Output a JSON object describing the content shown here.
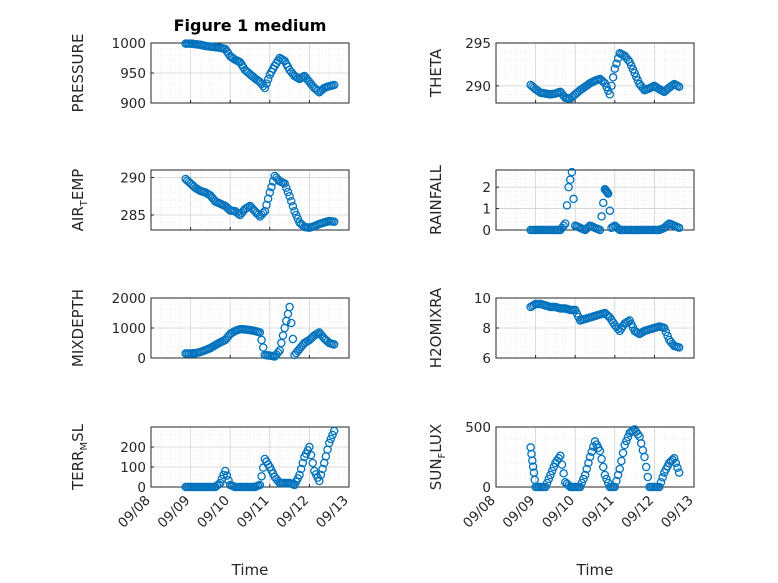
{
  "chart_data": [
    {
      "type": "scatter",
      "title": "Figure 1 medium",
      "ylabel": "PRESSURE",
      "ylabel_sub": "",
      "ylim": [
        900,
        1000
      ],
      "yticks": [
        900,
        950,
        1000
      ],
      "xticks_shown": false,
      "color": "#0072BD",
      "x": [
        "09/08 21:00",
        "09/09 00:00",
        "09/09 03:00",
        "09/09 06:00",
        "09/09 09:00",
        "09/09 12:00",
        "09/09 15:00",
        "09/09 18:00",
        "09/09 21:00",
        "09/10 00:00",
        "09/10 03:00",
        "09/10 06:00",
        "09/10 09:00",
        "09/10 12:00",
        "09/10 15:00",
        "09/10 18:00",
        "09/10 21:00",
        "09/11 00:00",
        "09/11 03:00",
        "09/11 06:00",
        "09/11 09:00",
        "09/11 12:00",
        "09/11 15:00",
        "09/11 18:00",
        "09/11 21:00",
        "09/12 00:00",
        "09/12 03:00",
        "09/12 06:00",
        "09/12 09:00",
        "09/12 12:00",
        "09/12 15:00"
      ],
      "y": [
        999,
        999,
        998,
        997,
        995,
        994,
        993,
        992,
        990,
        978,
        972,
        968,
        955,
        948,
        941,
        935,
        925,
        947,
        962,
        975,
        970,
        955,
        945,
        940,
        945,
        935,
        925,
        918,
        925,
        928,
        930
      ]
    },
    {
      "type": "scatter",
      "title": "",
      "ylabel": "THETA",
      "ylabel_sub": "",
      "ylim": [
        288,
        295
      ],
      "yticks": [
        290,
        295
      ],
      "xticks_shown": false,
      "color": "#0072BD",
      "x": [
        "09/08 21:00",
        "09/09 00:00",
        "09/09 03:00",
        "09/09 06:00",
        "09/09 09:00",
        "09/09 12:00",
        "09/09 15:00",
        "09/09 18:00",
        "09/09 21:00",
        "09/10 00:00",
        "09/10 03:00",
        "09/10 06:00",
        "09/10 09:00",
        "09/10 12:00",
        "09/10 15:00",
        "09/10 18:00",
        "09/10 21:00",
        "09/11 00:00",
        "09/11 03:00",
        "09/11 06:00",
        "09/11 09:00",
        "09/11 12:00",
        "09/11 15:00",
        "09/11 18:00",
        "09/11 21:00",
        "09/12 00:00",
        "09/12 03:00",
        "09/12 06:00",
        "09/12 09:00",
        "09/12 12:00",
        "09/12 15:00"
      ],
      "y": [
        290.1,
        289.6,
        289.2,
        289.1,
        289.0,
        289.1,
        289.3,
        288.6,
        288.5,
        289.0,
        289.5,
        289.9,
        290.3,
        290.6,
        290.8,
        290.3,
        289.0,
        292.0,
        293.8,
        293.5,
        292.8,
        291.5,
        290.2,
        289.5,
        289.7,
        290.0,
        289.6,
        289.3,
        289.8,
        290.2,
        289.9
      ]
    },
    {
      "type": "scatter",
      "title": "",
      "ylabel": "AIR",
      "ylabel_sub": "T",
      "ylabel_after": "EMP",
      "ylim": [
        283,
        291
      ],
      "yticks": [
        285,
        290
      ],
      "xticks_shown": false,
      "color": "#0072BD",
      "x": [
        "09/08 21:00",
        "09/09 00:00",
        "09/09 03:00",
        "09/09 06:00",
        "09/09 09:00",
        "09/09 12:00",
        "09/09 15:00",
        "09/09 18:00",
        "09/09 21:00",
        "09/10 00:00",
        "09/10 03:00",
        "09/10 06:00",
        "09/10 09:00",
        "09/10 12:00",
        "09/10 15:00",
        "09/10 18:00",
        "09/10 21:00",
        "09/11 00:00",
        "09/11 03:00",
        "09/11 06:00",
        "09/11 09:00",
        "09/11 12:00",
        "09/11 15:00",
        "09/11 18:00",
        "09/11 21:00",
        "09/12 00:00",
        "09/12 03:00",
        "09/12 06:00",
        "09/12 09:00",
        "09/12 12:00",
        "09/12 15:00"
      ],
      "y": [
        289.8,
        289.2,
        288.6,
        288.2,
        288.0,
        287.6,
        286.8,
        286.5,
        286.2,
        285.6,
        285.5,
        285.0,
        285.8,
        286.2,
        285.5,
        284.8,
        285.5,
        288.0,
        290.2,
        289.5,
        289.2,
        287.5,
        285.5,
        284.0,
        283.4,
        283.3,
        283.5,
        283.8,
        284.0,
        284.2,
        284.1
      ]
    },
    {
      "type": "scatter",
      "title": "",
      "ylabel": "RAINFALL",
      "ylabel_sub": "",
      "ylim": [
        0,
        2.8
      ],
      "yticks": [
        0,
        1,
        2
      ],
      "xticks_shown": false,
      "color": "#0072BD",
      "x": [
        "09/08 21:00",
        "09/09 00:00",
        "09/09 03:00",
        "09/09 06:00",
        "09/09 09:00",
        "09/09 12:00",
        "09/09 15:00",
        "09/09 18:00",
        "09/09 20:00",
        "09/09 22:00",
        "09/10 00:00",
        "09/10 03:00",
        "09/10 06:00",
        "09/10 09:00",
        "09/10 12:00",
        "09/10 15:00",
        "09/10 18:00",
        "09/10 19:00",
        "09/10 20:00",
        "09/10 22:00",
        "09/11 00:00",
        "09/11 03:00",
        "09/11 06:00",
        "09/11 09:00",
        "09/11 12:00",
        "09/11 15:00",
        "09/11 18:00",
        "09/11 21:00",
        "09/12 00:00",
        "09/12 03:00",
        "09/12 06:00",
        "09/12 09:00",
        "09/12 12:00",
        "09/12 15:00"
      ],
      "y": [
        0,
        0,
        0,
        0,
        0,
        0,
        0,
        0.3,
        2.0,
        2.7,
        0.2,
        0.1,
        0,
        0.2,
        0.1,
        0,
        1.9,
        1.8,
        1.7,
        0.1,
        0.2,
        0,
        0,
        0,
        0,
        0,
        0,
        0,
        0,
        0,
        0.1,
        0.3,
        0.2,
        0.1
      ]
    },
    {
      "type": "scatter",
      "title": "",
      "ylabel": "MIXDEPTH",
      "ylabel_sub": "",
      "ylim": [
        0,
        2000
      ],
      "yticks": [
        0,
        1000,
        2000
      ],
      "xticks_shown": false,
      "color": "#0072BD",
      "x": [
        "09/08 21:00",
        "09/09 00:00",
        "09/09 03:00",
        "09/09 06:00",
        "09/09 09:00",
        "09/09 12:00",
        "09/09 15:00",
        "09/09 18:00",
        "09/09 21:00",
        "09/10 00:00",
        "09/10 03:00",
        "09/10 06:00",
        "09/10 09:00",
        "09/10 12:00",
        "09/10 15:00",
        "09/10 18:00",
        "09/10 21:00",
        "09/11 00:00",
        "09/11 03:00",
        "09/11 06:00",
        "09/11 09:00",
        "09/11 12:00",
        "09/11 15:00",
        "09/11 18:00",
        "09/11 21:00",
        "09/12 00:00",
        "09/12 03:00",
        "09/12 06:00",
        "09/12 09:00",
        "09/12 12:00",
        "09/12 15:00"
      ],
      "y": [
        150,
        150,
        160,
        200,
        260,
        330,
        430,
        520,
        600,
        800,
        900,
        960,
        950,
        930,
        900,
        850,
        100,
        80,
        50,
        250,
        1000,
        1700,
        100,
        300,
        500,
        600,
        750,
        850,
        650,
        500,
        450
      ]
    },
    {
      "type": "scatter",
      "title": "",
      "ylabel": "H2OMIXRA",
      "ylabel_sub": "",
      "ylim": [
        6,
        10
      ],
      "yticks": [
        6,
        8,
        10
      ],
      "xticks_shown": false,
      "color": "#0072BD",
      "x": [
        "09/08 21:00",
        "09/09 00:00",
        "09/09 03:00",
        "09/09 06:00",
        "09/09 09:00",
        "09/09 12:00",
        "09/09 15:00",
        "09/09 18:00",
        "09/09 21:00",
        "09/10 00:00",
        "09/10 03:00",
        "09/10 06:00",
        "09/10 09:00",
        "09/10 12:00",
        "09/10 15:00",
        "09/10 18:00",
        "09/10 21:00",
        "09/11 00:00",
        "09/11 03:00",
        "09/11 06:00",
        "09/11 09:00",
        "09/11 12:00",
        "09/11 15:00",
        "09/11 18:00",
        "09/11 21:00",
        "09/12 00:00",
        "09/12 03:00",
        "09/12 06:00",
        "09/12 09:00",
        "09/12 12:00",
        "09/12 15:00"
      ],
      "y": [
        9.4,
        9.6,
        9.6,
        9.5,
        9.4,
        9.4,
        9.3,
        9.3,
        9.2,
        9.2,
        8.5,
        8.6,
        8.7,
        8.8,
        8.9,
        9.0,
        8.7,
        8.2,
        7.8,
        8.3,
        8.5,
        7.8,
        7.6,
        7.8,
        7.9,
        8.0,
        8.1,
        8.0,
        7.2,
        6.8,
        6.7
      ]
    },
    {
      "type": "scatter",
      "title": "",
      "ylabel": "TERR",
      "ylabel_sub": "M",
      "ylabel_after": "SL",
      "ylim": [
        0,
        300
      ],
      "yticks": [
        0,
        100,
        200
      ],
      "xticks_shown": true,
      "xlabel": "Time",
      "xticks": [
        "09/08",
        "09/09",
        "09/10",
        "09/11",
        "09/12",
        "09/13"
      ],
      "color": "#0072BD",
      "x": [
        "09/08 21:00",
        "09/09 00:00",
        "09/09 03:00",
        "09/09 06:00",
        "09/09 09:00",
        "09/09 12:00",
        "09/09 15:00",
        "09/09 18:00",
        "09/09 21:00",
        "09/10 00:00",
        "09/10 03:00",
        "09/10 06:00",
        "09/10 09:00",
        "09/10 12:00",
        "09/10 15:00",
        "09/10 18:00",
        "09/10 21:00",
        "09/11 00:00",
        "09/11 03:00",
        "09/11 06:00",
        "09/11 09:00",
        "09/11 12:00",
        "09/11 15:00",
        "09/11 18:00",
        "09/11 21:00",
        "09/12 00:00",
        "09/12 03:00",
        "09/12 06:00",
        "09/12 09:00",
        "09/12 12:00",
        "09/12 15:00"
      ],
      "y": [
        0,
        0,
        0,
        0,
        0,
        0,
        0,
        20,
        80,
        10,
        0,
        0,
        0,
        0,
        0,
        10,
        140,
        100,
        50,
        20,
        20,
        20,
        10,
        60,
        150,
        200,
        80,
        30,
        120,
        220,
        280
      ]
    },
    {
      "type": "scatter",
      "title": "",
      "ylabel": "SUN",
      "ylabel_sub": "F",
      "ylabel_after": "LUX",
      "ylim": [
        0,
        500
      ],
      "yticks": [
        0,
        500
      ],
      "xticks_shown": true,
      "xlabel": "Time",
      "xticks": [
        "09/08",
        "09/09",
        "09/10",
        "09/11",
        "09/12",
        "09/13"
      ],
      "color": "#0072BD",
      "x": [
        "09/08 21:00",
        "09/08 22:00",
        "09/08 23:00",
        "09/09 00:00",
        "09/09 03:00",
        "09/09 06:00",
        "09/09 09:00",
        "09/09 12:00",
        "09/09 15:00",
        "09/09 18:00",
        "09/09 21:00",
        "09/10 00:00",
        "09/10 03:00",
        "09/10 06:00",
        "09/10 09:00",
        "09/10 12:00",
        "09/10 15:00",
        "09/10 18:00",
        "09/10 21:00",
        "09/11 00:00",
        "09/11 03:00",
        "09/11 06:00",
        "09/11 09:00",
        "09/11 12:00",
        "09/11 15:00",
        "09/11 18:00",
        "09/11 21:00",
        "09/12 00:00",
        "09/12 03:00",
        "09/12 06:00",
        "09/12 09:00",
        "09/12 12:00",
        "09/12 15:00"
      ],
      "y": [
        330,
        220,
        120,
        0,
        0,
        0,
        100,
        200,
        260,
        40,
        0,
        0,
        0,
        100,
        250,
        380,
        300,
        100,
        0,
        0,
        150,
        350,
        450,
        480,
        420,
        250,
        0,
        0,
        0,
        120,
        200,
        240,
        120
      ]
    }
  ]
}
